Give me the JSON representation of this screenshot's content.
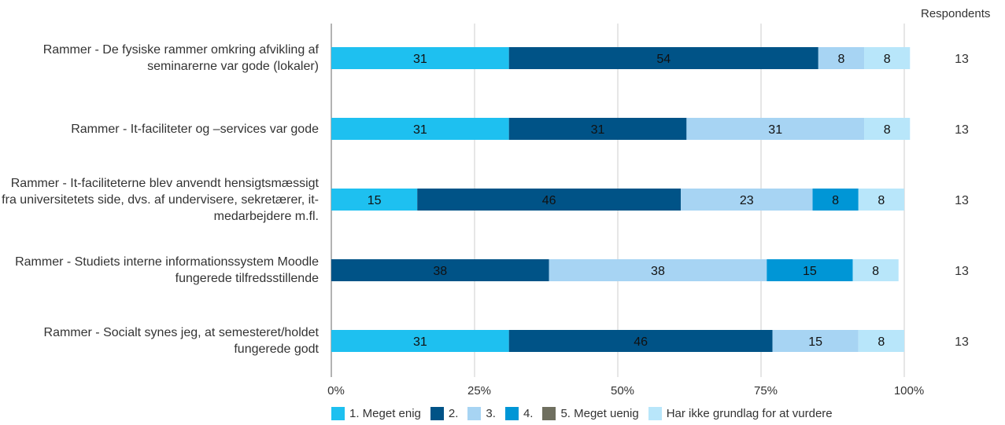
{
  "chart_data": {
    "type": "bar",
    "orientation": "horizontal",
    "stacked": true,
    "percent": true,
    "categories": [
      "Rammer - De fysiske rammer omkring afvikling af seminarerne var gode (lokaler)",
      "Rammer - It-faciliteter og –services var gode",
      "Rammer - It-faciliteterne blev anvendt hensigtsmæssigt fra universitetets side, dvs. af undervisere, sekretærer, it-medarbejdere m.fl.",
      "Rammer - Studiets interne informationssystem Moodle fungerede tilfredsstillende",
      "Rammer - Socialt synes jeg, at semesteret/holdet fungerede godt"
    ],
    "series": [
      {
        "name": "1. Meget enig",
        "color": "#1EC0F0",
        "values": [
          31,
          31,
          15,
          0,
          31
        ]
      },
      {
        "name": "2.",
        "color": "#005387",
        "values": [
          54,
          31,
          46,
          38,
          46
        ]
      },
      {
        "name": "3.",
        "color": "#A7D4F3",
        "values": [
          8,
          31,
          23,
          38,
          15
        ]
      },
      {
        "name": "4.",
        "color": "#0096D6",
        "values": [
          0,
          0,
          8,
          15,
          0
        ]
      },
      {
        "name": "5. Meget uenig",
        "color": "#6F6F5F",
        "values": [
          0,
          0,
          0,
          0,
          0
        ]
      },
      {
        "name": "Har ikke grundlag for at vurdere",
        "color": "#B8E6FA",
        "values": [
          8,
          8,
          8,
          8,
          8
        ]
      }
    ],
    "x_ticks": [
      "0%",
      "25%",
      "50%",
      "75%",
      "100%"
    ],
    "xlim": [
      0,
      100
    ],
    "respondents_header": "Respondents",
    "respondents": [
      "13",
      "13",
      "13",
      "13",
      "13"
    ],
    "grid": true,
    "legend_position": "bottom"
  }
}
